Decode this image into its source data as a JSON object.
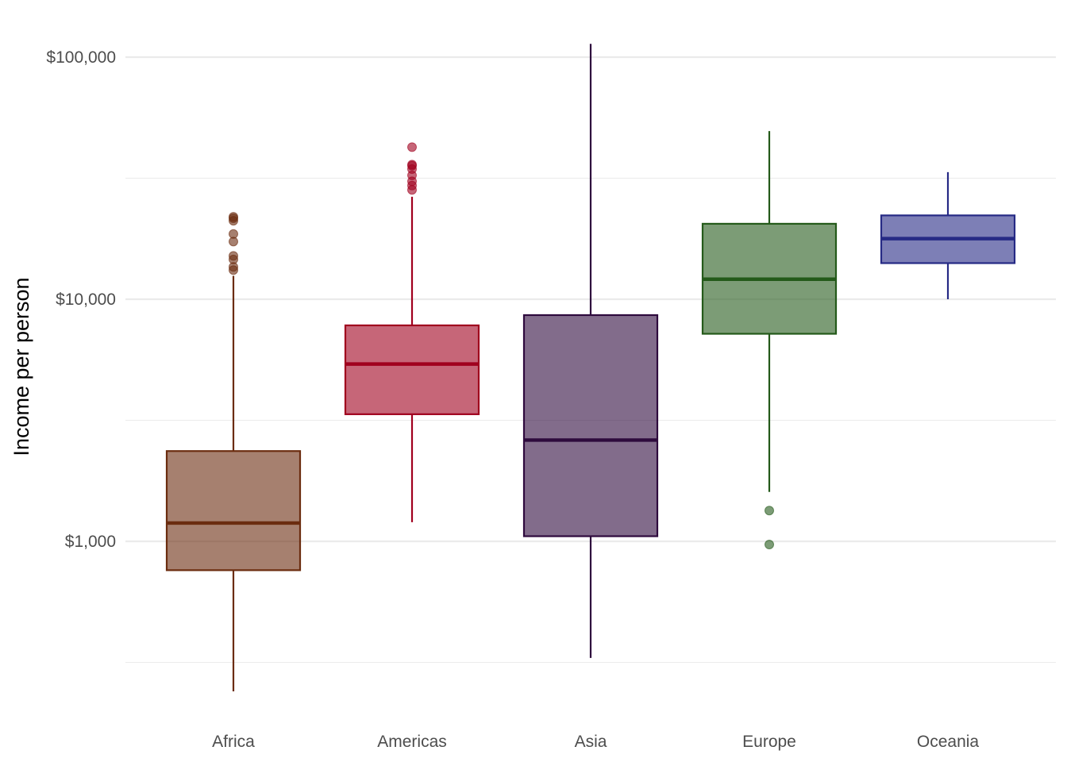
{
  "chart_data": {
    "type": "boxplot",
    "xlabel": "",
    "ylabel": "Income per person",
    "yscale": "log10",
    "ylim": [
      220,
      115000
    ],
    "yticks": [
      1000,
      10000,
      100000
    ],
    "ytick_labels": [
      "$1,000",
      "$10,000",
      "$100,000"
    ],
    "grid": true,
    "legend": "none",
    "categories": [
      "Africa",
      "Americas",
      "Asia",
      "Europe",
      "Oceania"
    ],
    "boxes": [
      {
        "category": "Africa",
        "color": "#6b2c0f",
        "whisker_low": 240,
        "q1": 760,
        "median": 1190,
        "q3": 2360,
        "whisker_high": 12500,
        "outliers": [
          13200,
          13600,
          14600,
          15100,
          17300,
          18600,
          21100,
          21600,
          21900
        ]
      },
      {
        "category": "Americas",
        "color": "#a0001e",
        "whisker_low": 1200,
        "q1": 3350,
        "median": 5400,
        "q3": 7800,
        "whisker_high": 26500,
        "outliers": [
          28300,
          29500,
          30700,
          32500,
          34500,
          35600,
          36000,
          42500
        ]
      },
      {
        "category": "Asia",
        "color": "#2e0a3d",
        "whisker_low": 330,
        "q1": 1050,
        "median": 2620,
        "q3": 8600,
        "whisker_high": 113500,
        "outliers": []
      },
      {
        "category": "Europe",
        "color": "#245a1a",
        "whisker_low": 1600,
        "q1": 7200,
        "median": 12100,
        "q3": 20500,
        "whisker_high": 49500,
        "outliers": [
          970,
          1340
        ]
      },
      {
        "category": "Oceania",
        "color": "#262a85",
        "whisker_low": 10000,
        "q1": 14100,
        "median": 17800,
        "q3": 22200,
        "whisker_high": 33500,
        "outliers": []
      }
    ]
  }
}
